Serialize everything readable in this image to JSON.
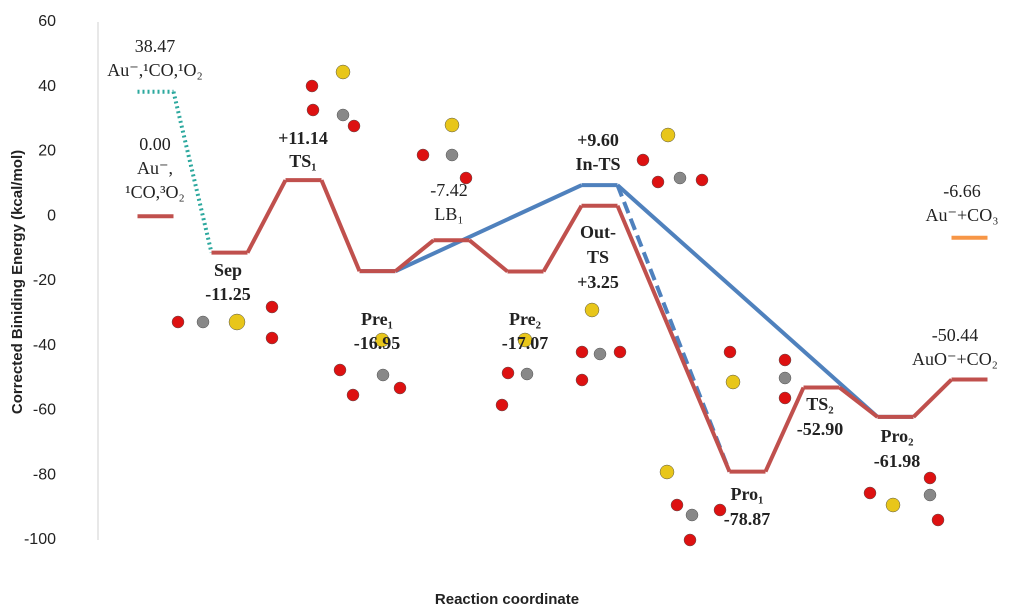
{
  "chart_data": {
    "type": "energy-profile",
    "ylabel": "Corrected Biniding Energy (kcal/mol)",
    "xlabel": "Reaction coordinate",
    "ylim": [
      -100,
      60
    ],
    "yticks": [
      -100,
      -80,
      -60,
      -40,
      -20,
      0,
      20,
      40,
      60
    ],
    "xlim": [
      -0.75,
      11.5
    ],
    "series": [
      {
        "color": "#c0504d",
        "dash": "solid",
        "x": [
          1,
          2,
          3,
          4,
          5,
          6,
          8,
          9,
          10,
          11
        ],
        "values": [
          -11.25,
          11.14,
          -16.95,
          -7.42,
          -17.07,
          3.25,
          -78.87,
          -52.9,
          -61.98,
          -50.44
        ],
        "names": [
          "Sep",
          "TS₁",
          "Pre₁",
          "LB₁",
          "Pre₂",
          [
            "Out-",
            "TS"
          ],
          "Pro₁",
          "TS₂",
          "Pro₂",
          "AuO⁻+CO₂"
        ],
        "value_labels": [
          "-11.25",
          "+11.14",
          "-16.95",
          "-7.42",
          "-17.07",
          "+3.25",
          "-78.87",
          "-52.90",
          "-61.98",
          "-50.44"
        ]
      },
      {
        "color": "#c0504d",
        "dash": "solid",
        "x": [
          0
        ],
        "values": [
          0
        ],
        "names": [
          [
            "Au⁻,",
            "¹CO,³O₂"
          ]
        ],
        "value_labels": [
          "0.00"
        ]
      },
      {
        "color": "#2ca89e",
        "dash": "dotted",
        "x": [
          0,
          1
        ],
        "values": [
          38.47,
          -11.25
        ],
        "names": [
          "Au⁻,¹CO,¹O₂",
          null
        ],
        "value_labels": [
          "38.47",
          null
        ]
      },
      {
        "color": "#4f81bd",
        "dash": "solid",
        "x": [
          3,
          6,
          10
        ],
        "values": [
          -16.95,
          9.6,
          -61.98
        ],
        "names": [
          null,
          "In-TS",
          null
        ],
        "value_labels": [
          null,
          "+9.60",
          null
        ]
      },
      {
        "color": "#4f81bd",
        "dash": "dashed",
        "x": [
          6,
          8
        ],
        "values": [
          9.6,
          -78.87
        ],
        "names": [
          null,
          null
        ],
        "value_labels": [
          null,
          null
        ]
      },
      {
        "color": "#f79646",
        "dash": "solid",
        "x": [
          11
        ],
        "values": [
          -6.66
        ],
        "names": [
          "Au⁻+CO₃"
        ],
        "value_labels": [
          "-6.66"
        ]
      }
    ]
  }
}
